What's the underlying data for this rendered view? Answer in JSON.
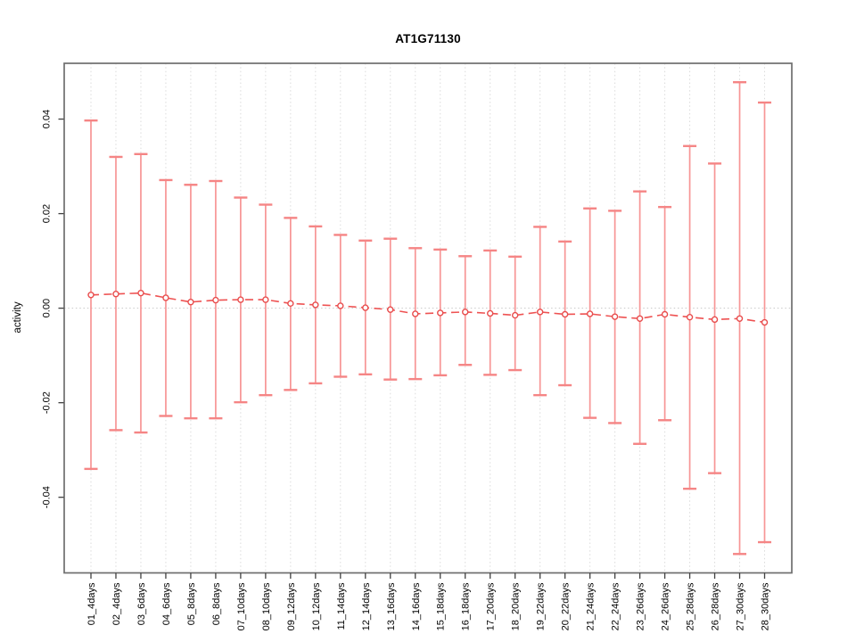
{
  "chart_data": {
    "type": "errorbar-line",
    "title": "AT1G71130",
    "xlabel": "",
    "ylabel": "activity",
    "categories": [
      "01_4days",
      "02_4days",
      "03_6days",
      "04_6days",
      "05_8days",
      "06_8days",
      "07_10days",
      "08_10days",
      "09_12days",
      "10_12days",
      "11_14days",
      "12_14days",
      "13_16days",
      "14_16days",
      "15_18days",
      "16_18days",
      "17_20days",
      "18_20days",
      "19_22days",
      "20_22days",
      "21_24days",
      "22_24days",
      "23_26days",
      "24_26days",
      "25_28days",
      "26_28days",
      "27_30days",
      "28_30days"
    ],
    "series": [
      {
        "name": "activity",
        "values": [
          0.0028,
          0.003,
          0.0032,
          0.0022,
          0.0013,
          0.0017,
          0.0018,
          0.0018,
          0.001,
          0.0007,
          0.0005,
          0.0001,
          -0.0003,
          -0.0012,
          -0.001,
          -0.0008,
          -0.0011,
          -0.0015,
          -0.0008,
          -0.0013,
          -0.0012,
          -0.0018,
          -0.0022,
          -0.0013,
          -0.0019,
          -0.0024,
          -0.0022,
          -0.003
        ],
        "upper": [
          0.0397,
          0.032,
          0.0326,
          0.0271,
          0.0261,
          0.0269,
          0.0234,
          0.0219,
          0.0191,
          0.0173,
          0.0155,
          0.0143,
          0.0147,
          0.0127,
          0.0124,
          0.011,
          0.0122,
          0.0109,
          0.0172,
          0.0141,
          0.0211,
          0.0206,
          0.0247,
          0.0214,
          0.0343,
          0.0306,
          0.0478,
          0.0435
        ],
        "lower": [
          -0.034,
          -0.0258,
          -0.0263,
          -0.0228,
          -0.0233,
          -0.0233,
          -0.0199,
          -0.0184,
          -0.0173,
          -0.0159,
          -0.0145,
          -0.014,
          -0.0151,
          -0.015,
          -0.0142,
          -0.012,
          -0.0141,
          -0.0131,
          -0.0184,
          -0.0163,
          -0.0232,
          -0.0243,
          -0.0287,
          -0.0237,
          -0.0382,
          -0.0349,
          -0.052,
          -0.0495
        ]
      }
    ],
    "yticks": [
      -0.04,
      -0.02,
      0.0,
      0.02,
      0.04
    ],
    "ytick_labels": [
      "-0.04",
      "-0.02",
      "0.00",
      "0.02",
      "0.04"
    ],
    "ylim": [
      -0.056,
      0.0518
    ],
    "grid": {
      "vertical": "dotted line at each category",
      "horizontal": "dotted line at y=0 only"
    },
    "legend_position": "none",
    "colors": {
      "whisker": "#f79595",
      "cap": "#f58585",
      "line": "#ee5252",
      "point_stroke": "#e84c4c",
      "point_fill": "#ffffff",
      "gridline": "#dbdbdb",
      "zero_line": "#c8c8c8",
      "box": "#6e6e6e",
      "tick": "#404040",
      "text": "#000000",
      "background": "#ffffff"
    }
  }
}
